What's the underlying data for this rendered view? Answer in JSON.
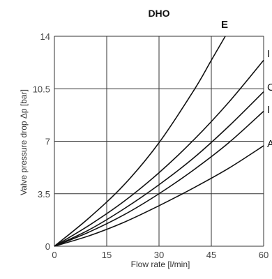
{
  "chart_data": {
    "type": "line",
    "title": "DHO",
    "xlabel": "Flow rate [l/min]",
    "ylabel": "Valve pressure drop Δp [bar]",
    "xlim": [
      0,
      60
    ],
    "ylim": [
      0,
      14
    ],
    "x_ticks": [
      "0",
      "15",
      "30",
      "45",
      "60"
    ],
    "y_ticks": [
      "0",
      "3.5",
      "7",
      "10.5",
      "14"
    ],
    "grid": true,
    "series": [
      {
        "name": "E",
        "x": [
          0,
          10,
          20,
          30,
          40,
          45,
          49
        ],
        "y": [
          0,
          1.9,
          4.1,
          6.9,
          10.4,
          12.4,
          14
        ]
      },
      {
        "name": "",
        "x": [
          0,
          10,
          20,
          30,
          40,
          50,
          60
        ],
        "y": [
          0,
          1.4,
          3.0,
          4.9,
          7.1,
          9.6,
          12.4
        ]
      },
      {
        "name": "",
        "x": [
          0,
          10,
          20,
          30,
          40,
          50,
          60
        ],
        "y": [
          0,
          1.1,
          2.5,
          4.1,
          5.9,
          8.0,
          10.3
        ]
      },
      {
        "name": "",
        "x": [
          0,
          10,
          20,
          30,
          40,
          50,
          60
        ],
        "y": [
          0,
          0.95,
          2.1,
          3.5,
          5.1,
          6.9,
          9.0
        ]
      },
      {
        "name": "",
        "x": [
          0,
          10,
          20,
          30,
          40,
          50,
          60
        ],
        "y": [
          0,
          0.7,
          1.6,
          2.7,
          3.9,
          5.2,
          6.7
        ]
      }
    ],
    "edge_labels": [
      "I",
      "C",
      "I",
      "A"
    ]
  }
}
